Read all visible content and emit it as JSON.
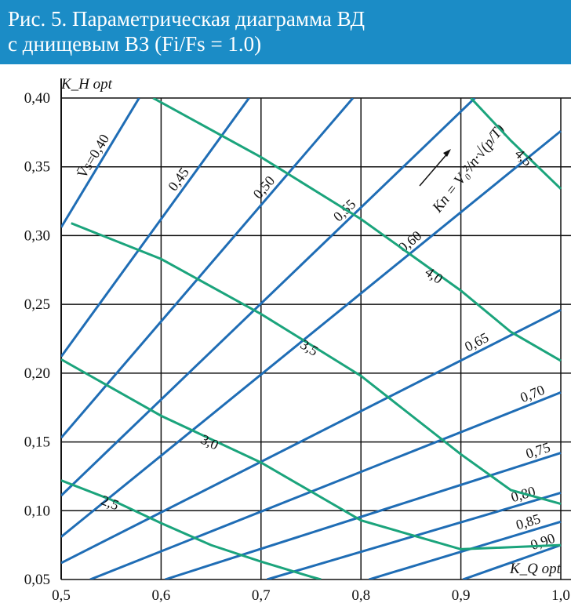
{
  "chart_data": {
    "type": "line",
    "title": "Рис. 5. Параметрическая диаграмма ВД",
    "subtitle": "с днищевым ВЗ (Fi/Fs = 1.0)",
    "y_label": "K_H opt",
    "x_label": "K_Q opt",
    "annotation": "Kn = V₀²/n·√(p/T)",
    "xlim": [
      0.5,
      1.0
    ],
    "ylim": [
      0.05,
      0.4
    ],
    "xticks": [
      {
        "value": 0.5,
        "label": "0,5"
      },
      {
        "value": 0.6,
        "label": "0,6"
      },
      {
        "value": 0.7,
        "label": "0,7"
      },
      {
        "value": 0.8,
        "label": "0,8"
      },
      {
        "value": 0.9,
        "label": "0,9"
      },
      {
        "value": 1.0,
        "label": "1,0"
      }
    ],
    "yticks": [
      {
        "value": 0.05,
        "label": "0,05"
      },
      {
        "value": 0.1,
        "label": "0,10"
      },
      {
        "value": 0.15,
        "label": "0,15"
      },
      {
        "value": 0.2,
        "label": "0,20"
      },
      {
        "value": 0.25,
        "label": "0,25"
      },
      {
        "value": 0.3,
        "label": "0,30"
      },
      {
        "value": 0.35,
        "label": "0,35"
      },
      {
        "value": 0.4,
        "label": "0,40"
      }
    ],
    "grid": true,
    "series": [
      {
        "name": "V̄s=0,40",
        "color": "#1f6db5",
        "x": [
          0.5,
          0.578
        ],
        "values": [
          0.306,
          0.4
        ]
      },
      {
        "name": "0,45",
        "color": "#1f6db5",
        "x": [
          0.5,
          0.688
        ],
        "values": [
          0.212,
          0.4
        ]
      },
      {
        "name": "0,50",
        "color": "#1f6db5",
        "x": [
          0.5,
          0.792
        ],
        "values": [
          0.153,
          0.4
        ]
      },
      {
        "name": "0,55",
        "color": "#1f6db5",
        "x": [
          0.5,
          0.914
        ],
        "values": [
          0.111,
          0.4
        ]
      },
      {
        "name": "0,60",
        "color": "#1f6db5",
        "x": [
          0.5,
          1.0
        ],
        "values": [
          0.081,
          0.376
        ]
      },
      {
        "name": "0,65",
        "color": "#1f6db5",
        "x": [
          0.5,
          1.0
        ],
        "values": [
          0.062,
          0.246
        ]
      },
      {
        "name": "0,70",
        "color": "#1f6db5",
        "x": [
          0.529,
          1.0
        ],
        "values": [
          0.05,
          0.186
        ]
      },
      {
        "name": "0,75",
        "color": "#1f6db5",
        "x": [
          0.604,
          1.0
        ],
        "values": [
          0.05,
          0.142
        ]
      },
      {
        "name": "0,80",
        "color": "#1f6db5",
        "x": [
          0.706,
          1.0
        ],
        "values": [
          0.05,
          0.113
        ]
      },
      {
        "name": "0,85",
        "color": "#1f6db5",
        "x": [
          0.808,
          1.0
        ],
        "values": [
          0.05,
          0.092
        ]
      },
      {
        "name": "0,90",
        "color": "#1f6db5",
        "x": [
          0.902,
          1.0
        ],
        "values": [
          0.05,
          0.075
        ]
      },
      {
        "name": "2,5",
        "color": "#1ba47c",
        "x": [
          0.5,
          0.55,
          0.6,
          0.65,
          0.7,
          0.75,
          0.76
        ],
        "values": [
          0.122,
          0.108,
          0.091,
          0.075,
          0.063,
          0.052,
          0.05
        ]
      },
      {
        "name": "3,0",
        "color": "#1ba47c",
        "x": [
          0.5,
          0.6,
          0.7,
          0.8,
          0.9,
          1.0
        ],
        "values": [
          0.21,
          0.169,
          0.135,
          0.093,
          0.072,
          0.075
        ]
      },
      {
        "name": "3,5",
        "color": "#1ba47c",
        "x": [
          0.51,
          0.6,
          0.7,
          0.8,
          0.9,
          0.95,
          1.0
        ],
        "values": [
          0.309,
          0.283,
          0.243,
          0.198,
          0.141,
          0.115,
          0.105
        ]
      },
      {
        "name": "4,0",
        "color": "#1ba47c",
        "x": [
          0.592,
          0.7,
          0.8,
          0.9,
          0.95,
          1.0
        ],
        "values": [
          0.4,
          0.357,
          0.312,
          0.26,
          0.23,
          0.209
        ]
      },
      {
        "name": "4,5",
        "color": "#1ba47c",
        "x": [
          0.91,
          0.95,
          1.0
        ],
        "values": [
          0.4,
          0.369,
          0.334
        ]
      }
    ]
  }
}
